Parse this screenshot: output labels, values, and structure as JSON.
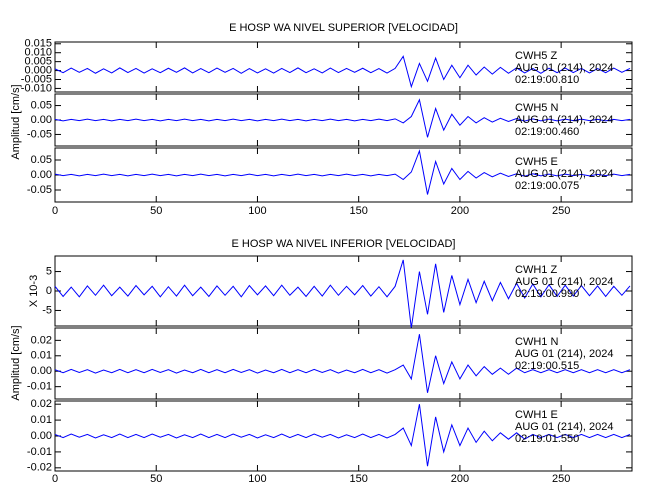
{
  "chart_data": [
    {
      "type": "line",
      "title": "E HOSP WA NIVEL SUPERIOR [VELOCIDAD]",
      "ylabel": "Amplitud [cm/s]",
      "color": "#0000ff",
      "xlim": [
        0,
        285
      ],
      "xticks": [
        0,
        50,
        100,
        150,
        200,
        250
      ],
      "x": [
        0,
        4,
        8,
        12,
        16,
        20,
        24,
        28,
        32,
        36,
        40,
        44,
        48,
        52,
        56,
        60,
        64,
        68,
        72,
        76,
        80,
        84,
        88,
        92,
        96,
        100,
        104,
        108,
        112,
        116,
        120,
        124,
        128,
        132,
        136,
        140,
        144,
        148,
        152,
        156,
        160,
        164,
        168,
        172,
        176,
        180,
        184,
        188,
        192,
        196,
        200,
        204,
        208,
        212,
        216,
        220,
        224,
        228,
        232,
        236,
        240,
        244,
        248,
        252,
        256,
        260,
        264,
        268,
        272,
        276,
        280,
        284
      ],
      "panels": [
        {
          "station": "CWH5  Z",
          "date": "AUG 01 (214), 2024",
          "time": "02:19:00.810",
          "ylim": [
            -0.012,
            0.016
          ],
          "yticks": [
            {
              "value": 0.015,
              "label": "0.015"
            },
            {
              "value": 0.01,
              "label": "0.010"
            },
            {
              "value": 0.005,
              "label": "0.005"
            },
            {
              "value": 0,
              "label": "0.000"
            },
            {
              "value": -0.005,
              "label": "-0.005"
            },
            {
              "value": -0.01,
              "label": "-0.010"
            }
          ],
          "values": [
            0.001,
            -0.0012,
            0.0014,
            -0.001,
            0.0012,
            -0.0015,
            0.001,
            -0.0013,
            0.0015,
            -0.0011,
            0.0012,
            -0.0014,
            0.001,
            -0.0012,
            0.0013,
            -0.001,
            0.0015,
            -0.0013,
            0.0011,
            -0.0012,
            0.0014,
            -0.001,
            0.0012,
            -0.0015,
            0.0011,
            -0.0013,
            0.001,
            -0.0014,
            0.0012,
            -0.0011,
            0.0015,
            -0.0012,
            0.001,
            -0.0013,
            0.0014,
            -0.0011,
            0.0012,
            -0.001,
            0.0013,
            -0.0012,
            0.0011,
            -0.0014,
            0.0012,
            0.008,
            -0.009,
            0.004,
            -0.006,
            0.007,
            -0.005,
            0.003,
            -0.004,
            0.003,
            -0.0025,
            0.002,
            -0.002,
            0.0018,
            -0.0015,
            0.0015,
            -0.0013,
            0.0012,
            -0.0015,
            0.0013,
            -0.0012,
            0.0014,
            -0.0011,
            0.0012,
            -0.0013,
            0.0011,
            -0.0012,
            0.0014,
            -0.001,
            0.0012
          ]
        },
        {
          "station": "CWH5  N",
          "date": "AUG 01 (214), 2024",
          "time": "02:19:00.460",
          "ylim": [
            -0.09,
            0.09
          ],
          "yticks": [
            0.05,
            {
              "value": 0,
              "label": "0.00"
            },
            -0.05
          ],
          "values": [
            0.002,
            -0.003,
            0.002,
            -0.002,
            0.003,
            -0.002,
            0.002,
            -0.003,
            0.002,
            -0.002,
            0.003,
            -0.002,
            0.002,
            -0.003,
            0.002,
            -0.002,
            0.003,
            -0.002,
            0.002,
            -0.003,
            0.002,
            -0.002,
            0.003,
            -0.002,
            0.002,
            -0.003,
            0.002,
            -0.002,
            0.003,
            -0.002,
            0.002,
            -0.003,
            0.002,
            -0.002,
            0.003,
            -0.002,
            0.002,
            -0.003,
            0.002,
            -0.002,
            0.003,
            -0.002,
            0.004,
            -0.01,
            0.012,
            0.07,
            -0.06,
            0.04,
            -0.035,
            0.02,
            -0.018,
            0.012,
            -0.01,
            0.008,
            -0.007,
            0.006,
            -0.005,
            0.005,
            -0.004,
            0.004,
            -0.003,
            0.003,
            -0.003,
            0.003,
            -0.002,
            0.003,
            -0.002,
            0.002,
            -0.003,
            0.002,
            -0.002,
            0.002
          ]
        },
        {
          "station": "CWH5  E",
          "date": "AUG 01 (214), 2024",
          "time": "02:19:00.075",
          "ylim": [
            -0.09,
            0.09
          ],
          "yticks": [
            0.05,
            {
              "value": 0,
              "label": "0.00"
            },
            -0.05
          ],
          "values": [
            0.003,
            -0.002,
            0.002,
            -0.003,
            0.002,
            -0.002,
            0.003,
            -0.002,
            0.002,
            -0.003,
            0.002,
            -0.002,
            0.003,
            -0.002,
            0.002,
            -0.003,
            0.002,
            -0.002,
            0.003,
            -0.002,
            0.002,
            -0.003,
            0.002,
            -0.002,
            0.003,
            -0.002,
            0.002,
            -0.003,
            0.002,
            -0.002,
            0.003,
            -0.002,
            0.002,
            -0.003,
            0.002,
            -0.002,
            0.003,
            -0.002,
            0.002,
            -0.003,
            0.002,
            -0.002,
            0.003,
            -0.015,
            0.01,
            0.08,
            -0.065,
            0.045,
            -0.03,
            0.022,
            -0.015,
            0.012,
            -0.01,
            0.008,
            -0.006,
            0.006,
            -0.005,
            0.004,
            -0.004,
            0.004,
            -0.003,
            0.003,
            -0.003,
            0.003,
            -0.002,
            0.002,
            -0.003,
            0.002,
            -0.002,
            0.003,
            -0.002,
            0.002
          ]
        }
      ]
    },
    {
      "type": "line",
      "title": "E HOSP WA NIVEL INFERIOR [VELOCIDAD]",
      "ylabel": "Amplitud [cm/s]",
      "color": "#0000ff",
      "xlim": [
        0,
        285
      ],
      "xticks": [
        0,
        50,
        100,
        150,
        200,
        250
      ],
      "x": [
        0,
        4,
        8,
        12,
        16,
        20,
        24,
        28,
        32,
        36,
        40,
        44,
        48,
        52,
        56,
        60,
        64,
        68,
        72,
        76,
        80,
        84,
        88,
        92,
        96,
        100,
        104,
        108,
        112,
        116,
        120,
        124,
        128,
        132,
        136,
        140,
        144,
        148,
        152,
        156,
        160,
        164,
        168,
        172,
        176,
        180,
        184,
        188,
        192,
        196,
        200,
        204,
        208,
        212,
        216,
        220,
        224,
        228,
        232,
        236,
        240,
        244,
        248,
        252,
        256,
        260,
        264,
        268,
        272,
        276,
        280,
        284
      ],
      "panels": [
        {
          "station": "CWH1  Z",
          "date": "AUG 01 (214), 2024",
          "time": "02:19:00.990",
          "multiplier": "X 10-3",
          "ylim": [
            -9,
            9
          ],
          "yticks": [
            5,
            0,
            -5
          ],
          "values": [
            1.2,
            -1.4,
            1.0,
            -1.5,
            1.3,
            -1.1,
            1.5,
            -1.2,
            1.0,
            -1.3,
            1.4,
            -1.0,
            1.2,
            -1.5,
            1.1,
            -1.3,
            1.5,
            -1.2,
            1.0,
            -1.4,
            1.3,
            -1.1,
            1.2,
            -1.5,
            1.4,
            -1.0,
            1.3,
            -1.2,
            1.5,
            -1.1,
            1.0,
            -1.4,
            1.2,
            -1.3,
            1.5,
            -1.1,
            1.2,
            -1.0,
            1.4,
            -1.3,
            1.1,
            -1.5,
            1.2,
            8,
            -9.5,
            5,
            -6,
            7,
            -5.5,
            4,
            -3.5,
            3,
            -3,
            2.5,
            -2.5,
            2.2,
            -2,
            2,
            -1.8,
            1.8,
            -1.5,
            1.6,
            -1.4,
            1.5,
            -1.3,
            1.4,
            -1.2,
            1.3,
            -1.4,
            1.2,
            -1.1,
            1.3
          ]
        },
        {
          "station": "CWH1  N",
          "date": "AUG 01 (214), 2024",
          "time": "02:19:00.515",
          "ylim": [
            -0.018,
            0.028
          ],
          "yticks": [
            0.02,
            0.01,
            {
              "value": 0,
              "label": "0.00"
            },
            -0.01
          ],
          "values": [
            0.001,
            -0.001,
            0.0012,
            -0.0008,
            0.001,
            -0.0012,
            0.0008,
            -0.001,
            0.0012,
            -0.001,
            0.001,
            -0.001,
            0.0012,
            -0.0008,
            0.001,
            -0.0012,
            0.0008,
            -0.001,
            0.0012,
            -0.001,
            0.001,
            -0.001,
            0.0012,
            -0.0008,
            0.001,
            -0.0012,
            0.0008,
            -0.001,
            0.0012,
            -0.001,
            0.001,
            -0.001,
            0.0012,
            -0.0008,
            0.001,
            -0.0012,
            0.0008,
            -0.001,
            0.0012,
            -0.001,
            0.001,
            -0.0012,
            0.001,
            0.004,
            -0.005,
            0.024,
            -0.014,
            0.01,
            -0.008,
            0.006,
            -0.005,
            0.004,
            -0.003,
            0.003,
            -0.002,
            0.002,
            -0.002,
            0.002,
            -0.001,
            0.001,
            -0.001,
            0.001,
            -0.001,
            0.001,
            -0.001,
            0.001,
            -0.001,
            0.001,
            -0.001,
            0.001,
            -0.001,
            0.001
          ]
        },
        {
          "station": "CWH1  E",
          "date": "AUG 01 (214), 2024",
          "time": "02:19:01.550",
          "ylim": [
            -0.022,
            0.022
          ],
          "yticks": [
            0.02,
            0.01,
            {
              "value": 0,
              "label": "0.00"
            },
            -0.01,
            -0.02
          ],
          "values": [
            0.001,
            -0.001,
            0.0012,
            -0.0008,
            0.001,
            -0.0012,
            0.0008,
            -0.001,
            0.0012,
            -0.001,
            0.001,
            -0.001,
            0.0012,
            -0.0008,
            0.001,
            -0.0012,
            0.0008,
            -0.001,
            0.0012,
            -0.001,
            0.001,
            -0.001,
            0.0012,
            -0.0008,
            0.001,
            -0.0012,
            0.0008,
            -0.001,
            0.0012,
            -0.001,
            0.001,
            -0.001,
            0.0012,
            -0.0008,
            0.001,
            -0.0012,
            0.0008,
            -0.001,
            0.0012,
            -0.001,
            0.001,
            -0.0012,
            0.001,
            0.005,
            -0.006,
            0.02,
            -0.019,
            0.012,
            -0.01,
            0.007,
            -0.006,
            0.005,
            -0.004,
            0.003,
            -0.003,
            0.002,
            -0.002,
            0.002,
            -0.002,
            0.001,
            -0.001,
            0.001,
            -0.001,
            0.001,
            -0.001,
            0.001,
            -0.001,
            0.001,
            -0.001,
            0.001,
            -0.001,
            0.001
          ]
        }
      ]
    }
  ]
}
